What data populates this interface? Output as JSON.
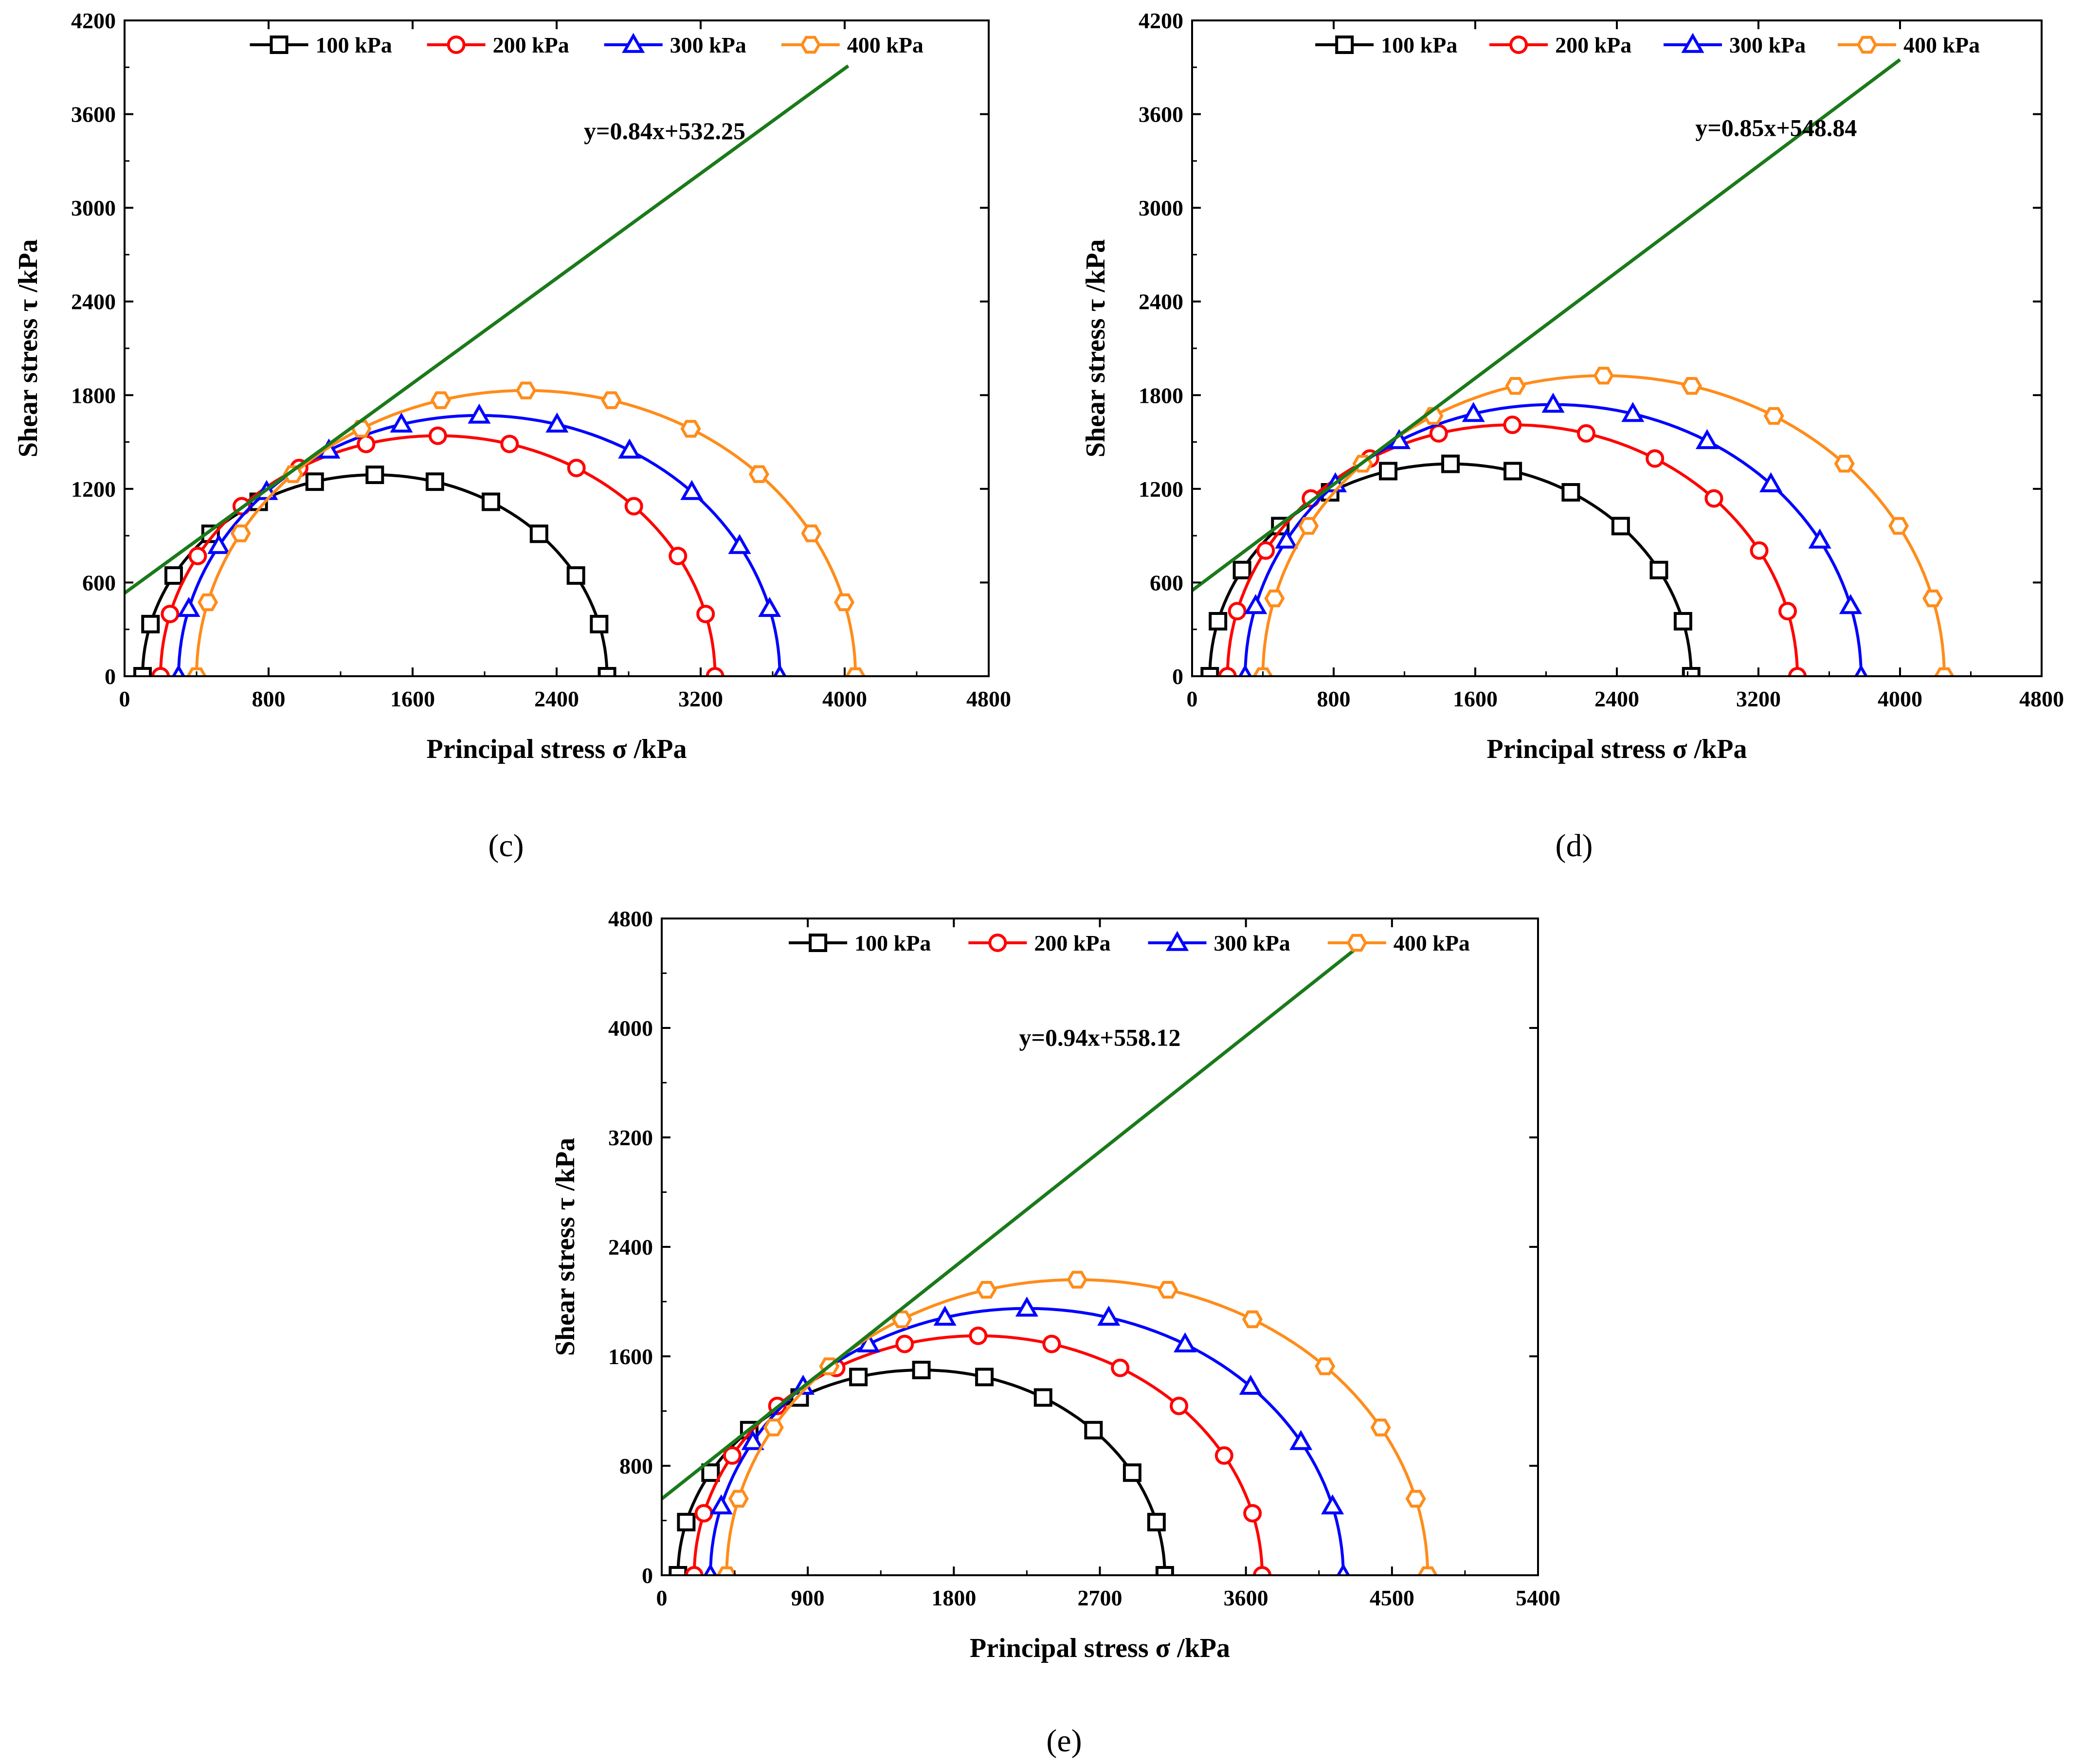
{
  "chart_data": [
    {
      "type": "line",
      "panel": "(c)",
      "caption": "(c)",
      "xlabel": "Principal stress σ /kPa",
      "ylabel": "Shear stress τ /kPa",
      "xlim": [
        0,
        4800
      ],
      "ylim": [
        0,
        4200
      ],
      "xticks": [
        0,
        800,
        1600,
        2400,
        3200,
        4000,
        4800
      ],
      "yticks": [
        0,
        600,
        1200,
        1800,
        2400,
        3000,
        3600,
        4200
      ],
      "legend": [
        "100 kPa",
        "200 kPa",
        "300 kPa",
        "400 kPa"
      ],
      "series": [
        {
          "name": "100 kPa",
          "color": "#000000",
          "marker": "square",
          "sigma3": 100,
          "sigma1": 2680
        },
        {
          "name": "200 kPa",
          "color": "#ff0000",
          "marker": "circle",
          "sigma3": 200,
          "sigma1": 3280
        },
        {
          "name": "300 kPa",
          "color": "#0000ff",
          "marker": "triangle",
          "sigma3": 300,
          "sigma1": 3640
        },
        {
          "name": "400 kPa",
          "color": "#ff8c1a",
          "marker": "hexagon",
          "sigma3": 400,
          "sigma1": 4060
        }
      ],
      "envelope": {
        "equation": "y=0.84x+532.25",
        "slope": 0.84,
        "intercept": 532.25,
        "x_range": [
          0,
          4020
        ],
        "color": "#1a7a1a"
      }
    },
    {
      "type": "line",
      "panel": "(d)",
      "caption": "(d)",
      "xlabel": "Principal stress σ /kPa",
      "ylabel": "Shear stress τ /kPa",
      "xlim": [
        0,
        4800
      ],
      "ylim": [
        0,
        4200
      ],
      "xticks": [
        0,
        800,
        1600,
        2400,
        3200,
        4000,
        4800
      ],
      "yticks": [
        0,
        600,
        1200,
        1800,
        2400,
        3000,
        3600,
        4200
      ],
      "legend": [
        "100 kPa",
        "200 kPa",
        "300 kPa",
        "400 kPa"
      ],
      "series": [
        {
          "name": "100 kPa",
          "color": "#000000",
          "marker": "square",
          "sigma3": 100,
          "sigma1": 2820
        },
        {
          "name": "200 kPa",
          "color": "#ff0000",
          "marker": "circle",
          "sigma3": 200,
          "sigma1": 3420
        },
        {
          "name": "300 kPa",
          "color": "#0000ff",
          "marker": "triangle",
          "sigma3": 300,
          "sigma1": 3780
        },
        {
          "name": "400 kPa",
          "color": "#ff8c1a",
          "marker": "hexagon",
          "sigma3": 400,
          "sigma1": 4250
        }
      ],
      "envelope": {
        "equation": "y=0.85x+548.84",
        "slope": 0.85,
        "intercept": 548.84,
        "x_range": [
          0,
          4000
        ],
        "color": "#1a7a1a"
      }
    },
    {
      "type": "line",
      "panel": "(e)",
      "caption": "(e)",
      "xlabel": "Principal stress σ /kPa",
      "ylabel": "Shear stress τ /kPa",
      "xlim": [
        0,
        5400
      ],
      "ylim": [
        0,
        4800
      ],
      "xticks": [
        0,
        900,
        1800,
        2700,
        3600,
        4500,
        5400
      ],
      "yticks": [
        0,
        800,
        1600,
        2400,
        3200,
        4000,
        4800
      ],
      "legend": [
        "100 kPa",
        "200 kPa",
        "300 kPa",
        "400 kPa"
      ],
      "series": [
        {
          "name": "100 kPa",
          "color": "#000000",
          "marker": "square",
          "sigma3": 100,
          "sigma1": 3100
        },
        {
          "name": "200 kPa",
          "color": "#ff0000",
          "marker": "circle",
          "sigma3": 200,
          "sigma1": 3700
        },
        {
          "name": "300 kPa",
          "color": "#0000ff",
          "marker": "triangle",
          "sigma3": 300,
          "sigma1": 4200
        },
        {
          "name": "400 kPa",
          "color": "#ff8c1a",
          "marker": "hexagon",
          "sigma3": 400,
          "sigma1": 4720
        }
      ],
      "envelope": {
        "equation": "y=0.94x+558.12",
        "slope": 0.94,
        "intercept": 558.12,
        "x_range": [
          0,
          4300
        ],
        "color": "#1a7a1a"
      }
    }
  ]
}
